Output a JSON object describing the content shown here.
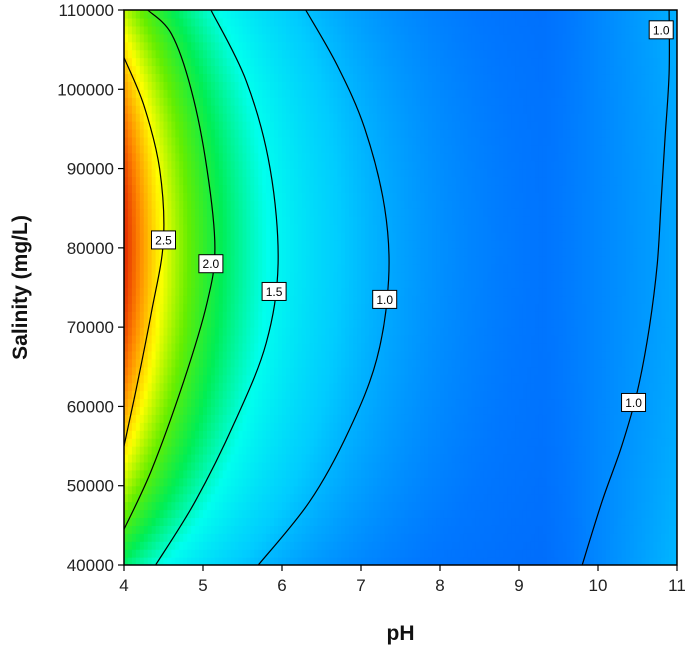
{
  "chart_data": {
    "type": "heatmap",
    "xlabel": "pH",
    "ylabel": "Salinity (mg/L)",
    "xlim": [
      4,
      11
    ],
    "ylim": [
      40000,
      110000
    ],
    "x_ticks": [
      4,
      5,
      6,
      7,
      8,
      9,
      10,
      11
    ],
    "y_ticks": [
      40000,
      50000,
      60000,
      70000,
      80000,
      90000,
      100000,
      110000
    ],
    "x_tick_labels": [
      "4",
      "5",
      "6",
      "7",
      "8",
      "9",
      "10",
      "11"
    ],
    "y_tick_labels": [
      "40000",
      "50000",
      "60000",
      "70000",
      "80000",
      "90000",
      "100000",
      "110000"
    ],
    "colormap": [
      "#0044ee",
      "#0077ff",
      "#00ccff",
      "#00ffee",
      "#00ee55",
      "#66ee00",
      "#ffff00",
      "#ff8800",
      "#dd1100"
    ],
    "value_range": [
      0.6,
      2.9
    ],
    "contours": [
      {
        "level": 2.5,
        "label": "2.5",
        "label_at": [
          4.5,
          81000
        ],
        "points": [
          [
            4,
            55000
          ],
          [
            4.15,
            62000
          ],
          [
            4.35,
            72000
          ],
          [
            4.5,
            81000
          ],
          [
            4.45,
            90000
          ],
          [
            4.25,
            98000
          ],
          [
            4,
            104000
          ]
        ]
      },
      {
        "level": 2.0,
        "label": "2.0",
        "label_at": [
          5.1,
          78000
        ],
        "points": [
          [
            4,
            44500
          ],
          [
            4.35,
            52000
          ],
          [
            4.75,
            63000
          ],
          [
            5.05,
            73000
          ],
          [
            5.15,
            80000
          ],
          [
            5.05,
            90000
          ],
          [
            4.85,
            100000
          ],
          [
            4.6,
            107000
          ],
          [
            4.3,
            110000
          ]
        ]
      },
      {
        "level": 1.5,
        "label": "1.5",
        "label_at": [
          5.9,
          74500
        ],
        "points": [
          [
            4.4,
            40000
          ],
          [
            4.9,
            48000
          ],
          [
            5.4,
            58000
          ],
          [
            5.8,
            68000
          ],
          [
            5.95,
            78000
          ],
          [
            5.85,
            90000
          ],
          [
            5.55,
            101000
          ],
          [
            5.1,
            110000
          ]
        ]
      },
      {
        "level": 1.0,
        "label": "1.0",
        "label_at": [
          7.3,
          73500
        ],
        "points": [
          [
            5.7,
            40000
          ],
          [
            6.35,
            48000
          ],
          [
            6.85,
            57000
          ],
          [
            7.2,
            66000
          ],
          [
            7.35,
            76000
          ],
          [
            7.3,
            85000
          ],
          [
            7.05,
            95000
          ],
          [
            6.7,
            103000
          ],
          [
            6.3,
            110000
          ]
        ]
      },
      {
        "level": 1.0,
        "label": "1.0",
        "label_at": [
          10.45,
          60500
        ],
        "points": [
          [
            9.8,
            40000
          ],
          [
            10.05,
            48000
          ],
          [
            10.3,
            55000
          ],
          [
            10.5,
            62000
          ],
          [
            10.65,
            70000
          ],
          [
            10.75,
            78000
          ],
          [
            10.8,
            86000
          ],
          [
            10.85,
            94000
          ],
          [
            10.9,
            102000
          ],
          [
            10.9,
            110000
          ]
        ]
      },
      {
        "level": 1.0,
        "label": "1.0",
        "label_at": [
          10.8,
          107500
        ],
        "points": []
      }
    ]
  }
}
